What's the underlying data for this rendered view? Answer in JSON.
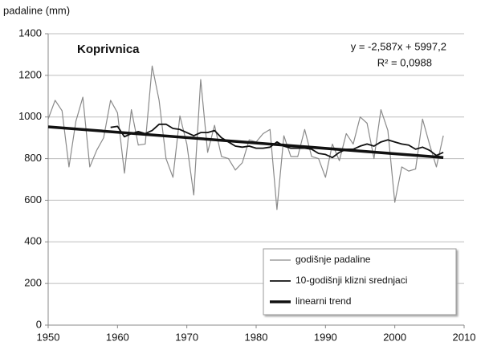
{
  "chart_data": {
    "type": "line",
    "y_label": "padaline (mm)",
    "station": "Koprivnica",
    "equation": "y = -2,587x + 5997,2",
    "r_squared": "R² = 0,0988",
    "xlim": [
      1950,
      2010
    ],
    "xticks": [
      1950,
      1960,
      1970,
      1980,
      1990,
      2000,
      2010
    ],
    "ylim": [
      0,
      1400
    ],
    "yticks": [
      0,
      200,
      400,
      600,
      800,
      1000,
      1200,
      1400
    ],
    "grid": true,
    "legend": "lower right",
    "series": [
      {
        "name": "godišnje padaline",
        "color": "#8a8a8a",
        "width": 1.2,
        "x": [
          1950,
          1951,
          1952,
          1953,
          1954,
          1955,
          1956,
          1957,
          1958,
          1959,
          1960,
          1961,
          1962,
          1963,
          1964,
          1965,
          1966,
          1967,
          1968,
          1969,
          1970,
          1971,
          1972,
          1973,
          1974,
          1975,
          1976,
          1977,
          1978,
          1979,
          1980,
          1981,
          1982,
          1983,
          1984,
          1985,
          1986,
          1987,
          1988,
          1989,
          1990,
          1991,
          1992,
          1993,
          1994,
          1995,
          1996,
          1997,
          1998,
          1999,
          2000,
          2001,
          2002,
          2003,
          2004,
          2005,
          2006,
          2007
        ],
        "values": [
          990,
          1080,
          1030,
          760,
          980,
          1095,
          760,
          840,
          900,
          1080,
          1020,
          730,
          1035,
          865,
          870,
          1245,
          1080,
          800,
          710,
          1005,
          870,
          625,
          1180,
          830,
          960,
          810,
          800,
          745,
          780,
          890,
          880,
          920,
          940,
          555,
          910,
          810,
          810,
          940,
          810,
          800,
          710,
          870,
          790,
          920,
          870,
          1000,
          970,
          800,
          1035,
          935,
          590,
          760,
          740,
          750,
          990,
          870,
          760,
          910
        ]
      },
      {
        "name": "10-godišnji klizni srednjaci",
        "color": "#111111",
        "width": 1.8,
        "x": [
          1959,
          1960,
          1961,
          1962,
          1963,
          1964,
          1965,
          1966,
          1967,
          1968,
          1969,
          1970,
          1971,
          1972,
          1973,
          1974,
          1975,
          1976,
          1977,
          1978,
          1979,
          1980,
          1981,
          1982,
          1983,
          1984,
          1985,
          1986,
          1987,
          1988,
          1989,
          1990,
          1991,
          1992,
          1993,
          1994,
          1995,
          1996,
          1997,
          1998,
          1999,
          2000,
          2001,
          2002,
          2003,
          2004,
          2005,
          2006,
          2007
        ],
        "values": [
          950,
          955,
          905,
          920,
          930,
          920,
          935,
          965,
          965,
          945,
          940,
          925,
          910,
          925,
          925,
          935,
          900,
          880,
          860,
          855,
          860,
          850,
          850,
          855,
          880,
          860,
          850,
          850,
          850,
          845,
          825,
          820,
          805,
          830,
          845,
          845,
          860,
          870,
          860,
          880,
          890,
          880,
          870,
          865,
          845,
          855,
          840,
          815,
          830
        ]
      },
      {
        "name": "linearni trend",
        "color": "#111111",
        "width": 3.5,
        "x": [
          1950,
          2007
        ],
        "values": [
          952.6,
          805.2
        ]
      }
    ]
  }
}
